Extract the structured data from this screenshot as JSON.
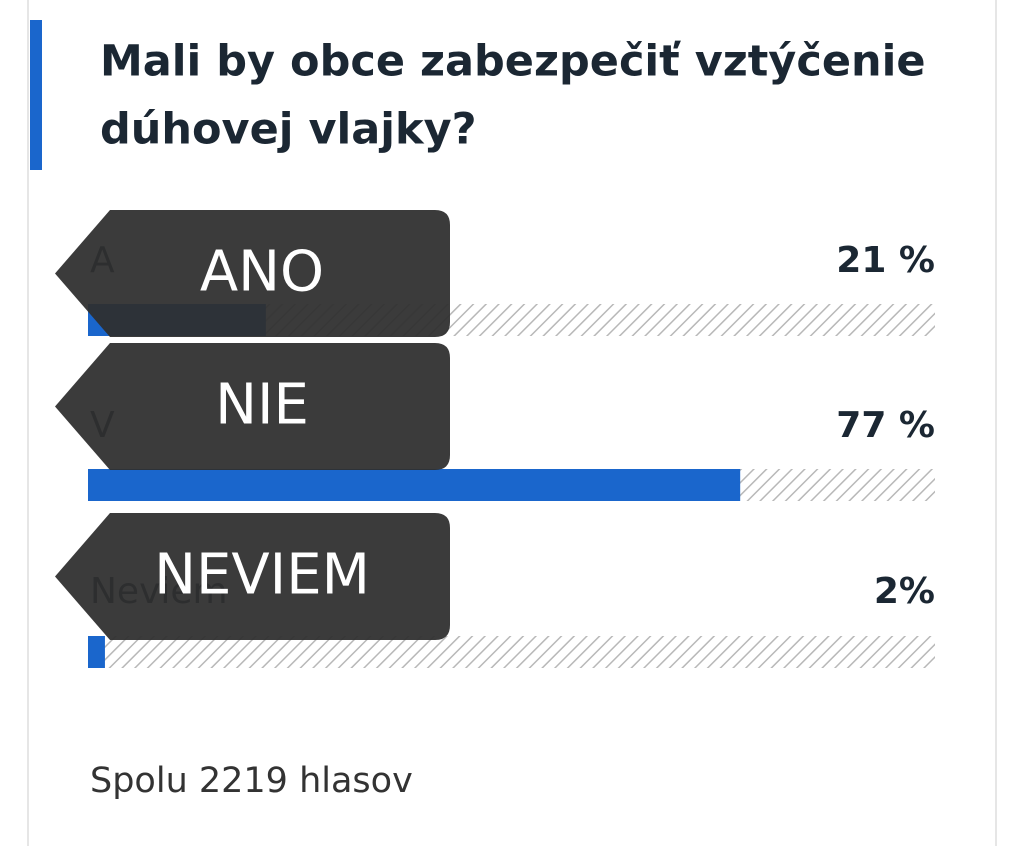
{
  "poll": {
    "question": [
      "Mali by obce zabezpečiť vztýčenie",
      "dúhovej vlajky?"
    ],
    "options": [
      {
        "label": "A",
        "value": 21,
        "value_label": "21 %",
        "overlay": "ANO"
      },
      {
        "label": "V",
        "value": 77,
        "value_label": "77 %",
        "overlay": "NIE"
      },
      {
        "label": "Neviem",
        "value": 2,
        "value_label": "2%",
        "overlay": "NEVIEM"
      }
    ],
    "footer": "Spolu 2219 hlasov"
  }
}
